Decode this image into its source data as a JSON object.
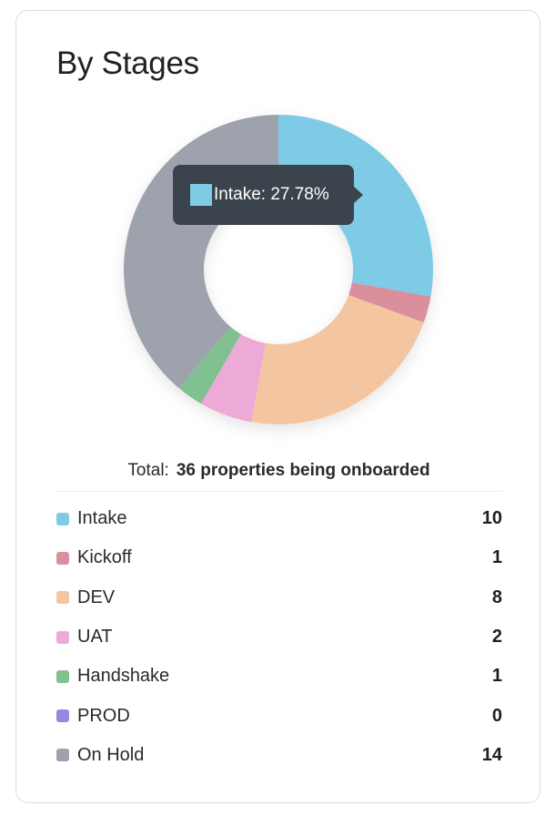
{
  "card": {
    "title": "By Stages"
  },
  "total": {
    "label": "Total:",
    "value": "36 properties being onboarded"
  },
  "tooltip": {
    "text": "Intake: 27.78%",
    "color": "#7ecbe6"
  },
  "chart_data": {
    "type": "pie",
    "variant": "donut",
    "title": "By Stages",
    "categories": [
      "Intake",
      "Kickoff",
      "DEV",
      "UAT",
      "Handshake",
      "PROD",
      "On Hold"
    ],
    "values": [
      10,
      1,
      8,
      2,
      1,
      0,
      14
    ],
    "colors": [
      "#7ecbe6",
      "#d98f9c",
      "#f3c6a1",
      "#eeaad6",
      "#80c091",
      "#9b85e3",
      "#9ea2ad"
    ],
    "legend_position": "bottom",
    "total": 36
  },
  "legend": [
    {
      "label": "Intake",
      "value": "10",
      "color": "#7ecbe6"
    },
    {
      "label": "Kickoff",
      "value": "1",
      "color": "#d98f9c"
    },
    {
      "label": "DEV",
      "value": "8",
      "color": "#f3c6a1"
    },
    {
      "label": "UAT",
      "value": "2",
      "color": "#eeaad6"
    },
    {
      "label": "Handshake",
      "value": "1",
      "color": "#80c091"
    },
    {
      "label": "PROD",
      "value": "0",
      "color": "#9b85e3"
    },
    {
      "label": "On Hold",
      "value": "14",
      "color": "#9ea2ad"
    }
  ]
}
